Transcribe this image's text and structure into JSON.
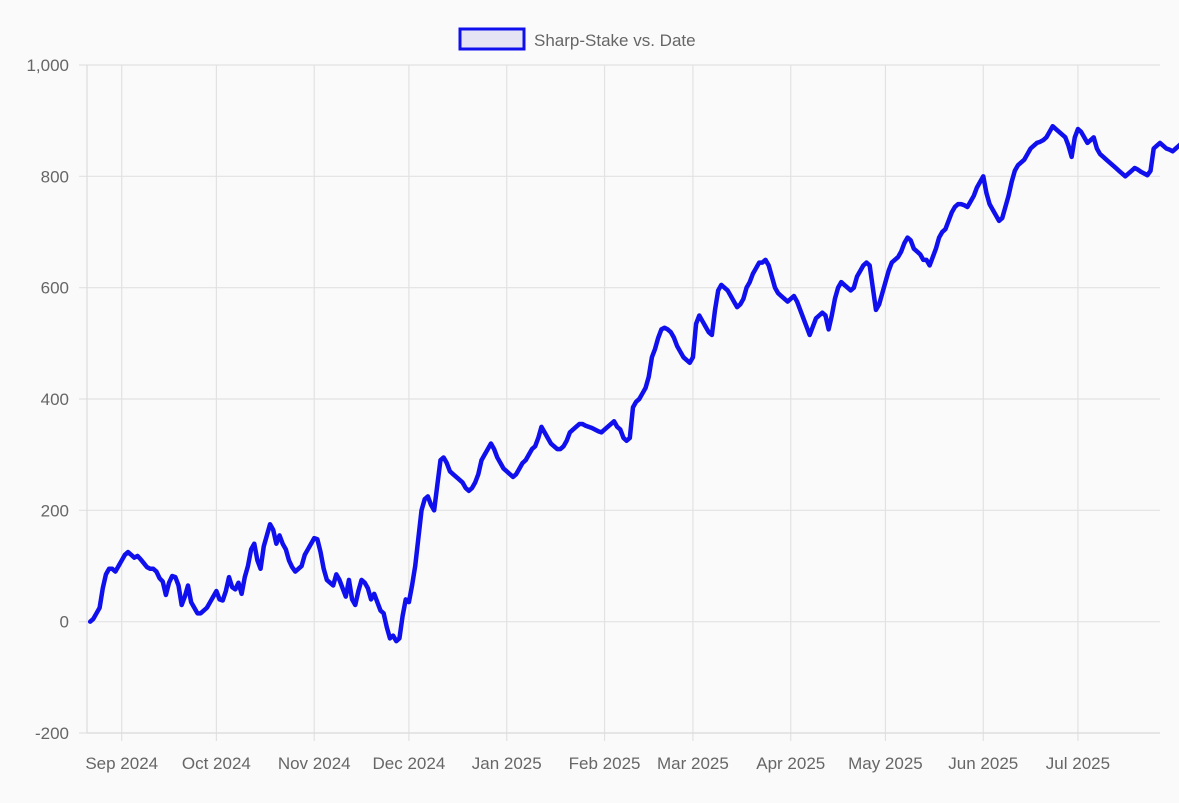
{
  "chart_data": {
    "type": "line",
    "title": "",
    "xlabel": "",
    "ylabel": "",
    "legend": {
      "label": "Sharp-Stake vs. Date",
      "placement": "top-center"
    },
    "ylim": [
      -200,
      1000
    ],
    "yticks": [
      -200,
      0,
      200,
      400,
      600,
      800,
      1000
    ],
    "ytick_labels": [
      "-200",
      "0",
      "200",
      "400",
      "600",
      "800",
      "1,000"
    ],
    "xlim": [
      "2024-08-21",
      "2025-07-27"
    ],
    "xticks": [
      {
        "date": "2024-09-01",
        "label": "Sep 2024"
      },
      {
        "date": "2024-10-01",
        "label": "Oct 2024"
      },
      {
        "date": "2024-11-01",
        "label": "Nov 2024"
      },
      {
        "date": "2024-12-01",
        "label": "Dec 2024"
      },
      {
        "date": "2025-01-01",
        "label": "Jan 2025"
      },
      {
        "date": "2025-02-01",
        "label": "Feb 2025"
      },
      {
        "date": "2025-03-01",
        "label": "Mar 2025"
      },
      {
        "date": "2025-04-01",
        "label": "Apr 2025"
      },
      {
        "date": "2025-05-01",
        "label": "May 2025"
      },
      {
        "date": "2025-06-01",
        "label": "Jun 2025"
      },
      {
        "date": "2025-07-01",
        "label": "Jul 2025"
      }
    ],
    "grid": true,
    "series": [
      {
        "name": "Sharp-Stake vs. Date",
        "color": "#1010ee",
        "legend_fill": "#e4e4f4",
        "start_date": "2024-08-22",
        "step_days": 1,
        "values": [
          0,
          5,
          15,
          25,
          60,
          85,
          95,
          95,
          90,
          100,
          110,
          120,
          125,
          120,
          115,
          118,
          112,
          105,
          98,
          95,
          95,
          90,
          78,
          72,
          48,
          70,
          82,
          80,
          65,
          30,
          45,
          65,
          35,
          25,
          15,
          15,
          20,
          25,
          35,
          45,
          55,
          40,
          38,
          55,
          80,
          62,
          58,
          70,
          50,
          80,
          100,
          130,
          140,
          110,
          95,
          135,
          155,
          175,
          165,
          140,
          155,
          140,
          130,
          110,
          98,
          90,
          95,
          100,
          120,
          130,
          140,
          150,
          148,
          125,
          95,
          75,
          70,
          65,
          85,
          75,
          60,
          45,
          75,
          40,
          30,
          55,
          75,
          70,
          60,
          40,
          50,
          35,
          20,
          15,
          -10,
          -30,
          -25,
          -35,
          -30,
          10,
          40,
          35,
          65,
          100,
          150,
          200,
          220,
          225,
          210,
          200,
          245,
          290,
          295,
          285,
          270,
          265,
          260,
          255,
          250,
          240,
          235,
          240,
          250,
          265,
          290,
          300,
          310,
          320,
          310,
          295,
          285,
          275,
          270,
          265,
          260,
          265,
          275,
          285,
          290,
          300,
          310,
          315,
          330,
          350,
          340,
          330,
          320,
          315,
          310,
          310,
          315,
          325,
          340,
          345,
          350,
          355,
          355,
          352,
          350,
          348,
          345,
          342,
          340,
          345,
          350,
          355,
          360,
          350,
          345,
          330,
          325,
          330,
          385,
          395,
          400,
          410,
          420,
          440,
          475,
          490,
          510,
          525,
          528,
          525,
          520,
          510,
          495,
          485,
          475,
          470,
          465,
          475,
          535,
          550,
          540,
          530,
          520,
          515,
          560,
          595,
          605,
          600,
          595,
          585,
          575,
          565,
          570,
          580,
          600,
          610,
          625,
          635,
          645,
          645,
          650,
          640,
          620,
          600,
          590,
          585,
          580,
          575,
          580,
          585,
          575,
          560,
          545,
          530,
          515,
          530,
          545,
          550,
          555,
          550,
          525,
          550,
          580,
          600,
          610,
          605,
          600,
          595,
          600,
          620,
          630,
          640,
          645,
          640,
          600,
          560,
          570,
          590,
          610,
          630,
          645,
          650,
          655,
          665,
          680,
          690,
          685,
          670,
          665,
          660,
          650,
          650,
          640,
          655,
          670,
          690,
          700,
          705,
          720,
          735,
          745,
          750,
          750,
          748,
          745,
          755,
          765,
          780,
          790,
          800,
          770,
          750,
          740,
          730,
          720,
          725,
          745,
          765,
          790,
          810,
          820,
          825,
          830,
          840,
          850,
          855,
          860,
          862,
          865,
          870,
          880,
          890,
          885,
          880,
          875,
          870,
          855,
          835,
          870,
          885,
          880,
          870,
          860,
          865,
          870,
          850,
          840,
          835,
          830,
          825,
          820,
          815,
          810,
          805,
          800,
          805,
          810,
          815,
          812,
          808,
          805,
          802,
          810,
          850,
          855,
          860,
          855,
          850,
          848,
          845,
          850,
          855,
          860,
          870,
          880,
          885,
          890,
          895,
          890,
          900,
          910,
          905,
          900,
          895,
          900,
          910,
          915,
          910,
          880,
          860,
          850,
          840,
          820,
          800,
          810,
          815,
          790,
          785,
          775,
          770,
          780,
          800,
          820,
          845,
          850,
          840,
          835,
          838,
          842,
          840,
          835,
          830,
          825,
          820,
          822,
          825,
          828,
          830,
          840,
          860,
          870,
          865,
          862,
          870,
          868,
          865,
          855,
          850,
          848,
          852,
          860,
          870,
          875,
          880,
          900,
          930
        ]
      }
    ]
  }
}
